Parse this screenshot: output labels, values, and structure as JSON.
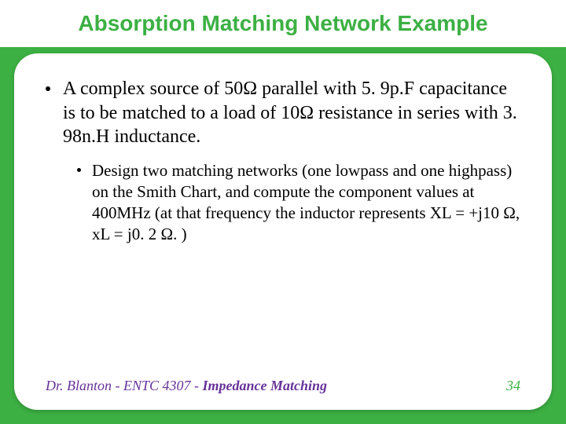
{
  "title": "Absorption Matching Network Example",
  "bullet_main": "A complex source of 50Ω parallel with 5. 9p.F capacitance is to be matched to a load of 10Ω resistance in series with 3. 98n.H inductance.",
  "bullet_sub": "Design two matching networks (one lowpass and one highpass) on the Smith Chart, and compute the component values at 400MHz (at that frequency the inductor represents XL = +j10 Ω, xL = j0. 2 Ω. )",
  "footer": {
    "author": "Dr. Blanton",
    "separator": "  -  ",
    "course": "ENTC 4307",
    "separator2": "  -  ",
    "topic": "Impedance Matching",
    "page": "34"
  },
  "colors": {
    "slide_bg": "#3cb043",
    "content_bg": "#ffffff",
    "title_text": "#3cb043",
    "body_text": "#000000",
    "footer_text": "#663399",
    "page_number": "#3cb043"
  }
}
